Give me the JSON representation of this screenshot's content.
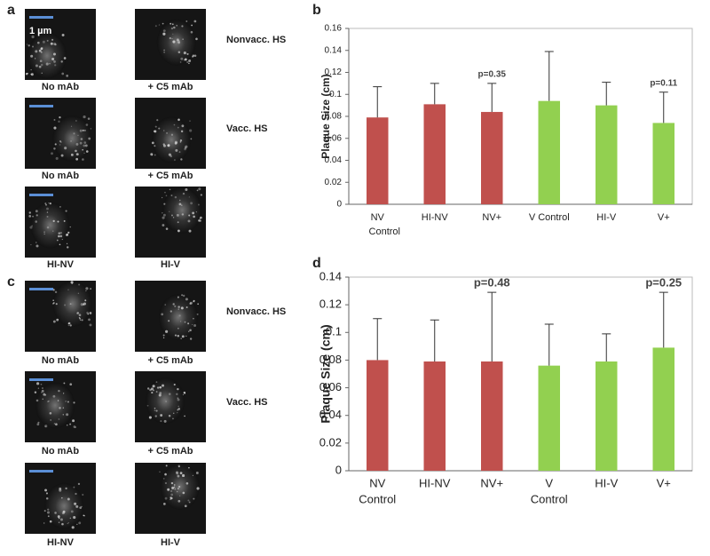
{
  "figure": {
    "a": {
      "label": "a",
      "scale_bar": "1 µm",
      "rows": [
        {
          "group": "Nonvacc. HS",
          "left": "No mAb",
          "right": "+ C5 mAb"
        },
        {
          "group": "Vacc. HS",
          "left": "No mAb",
          "right": "+ C5 mAb"
        },
        {
          "left": "HI-NV",
          "right": "HI-V"
        }
      ]
    },
    "c": {
      "label": "c",
      "rows": [
        {
          "group": "Nonvacc. HS",
          "left": "No mAb",
          "right": "+ C5 mAb"
        },
        {
          "group": "Vacc. HS",
          "left": "No mAb",
          "right": "+ C5 mAb"
        },
        {
          "left": "HI-NV",
          "right": "HI-V"
        }
      ]
    }
  },
  "chart_data": [
    {
      "type": "bar",
      "panel_label": "b",
      "y_label": "Plaque Size (cm)",
      "categories": [
        [
          "NV",
          "Control"
        ],
        "HI-NV",
        "NV+",
        "V Control",
        "HI-V",
        "V+"
      ],
      "values": [
        0.079,
        0.091,
        0.084,
        0.094,
        0.09,
        0.074
      ],
      "errors": [
        0.028,
        0.019,
        0.026,
        0.045,
        0.021,
        0.028
      ],
      "colors": [
        "#c0504d",
        "#c0504d",
        "#c0504d",
        "#92d050",
        "#92d050",
        "#92d050"
      ],
      "annotations": [
        null,
        null,
        "p=0.35",
        null,
        null,
        "p=0.11"
      ],
      "ylim": [
        0,
        0.16
      ],
      "yticks": [
        0,
        0.02,
        0.04,
        0.06,
        0.08,
        0.1,
        0.12,
        0.14,
        0.16
      ]
    },
    {
      "type": "bar",
      "panel_label": "d",
      "y_label": "Plaque Size (cm)",
      "categories": [
        [
          "NV",
          "Control"
        ],
        "HI-NV",
        "NV+",
        [
          "V",
          "Control"
        ],
        "HI-V",
        "V+"
      ],
      "values": [
        0.08,
        0.079,
        0.079,
        0.076,
        0.079,
        0.089
      ],
      "errors": [
        0.03,
        0.03,
        0.05,
        0.03,
        0.02,
        0.04
      ],
      "colors": [
        "#c0504d",
        "#c0504d",
        "#c0504d",
        "#92d050",
        "#92d050",
        "#92d050"
      ],
      "annotations": [
        null,
        null,
        "p=0.48",
        null,
        null,
        "p=0.25"
      ],
      "ylim": [
        0,
        0.14
      ],
      "yticks": [
        0,
        0.02,
        0.04,
        0.06,
        0.08,
        0.1,
        0.12,
        0.14
      ]
    }
  ]
}
